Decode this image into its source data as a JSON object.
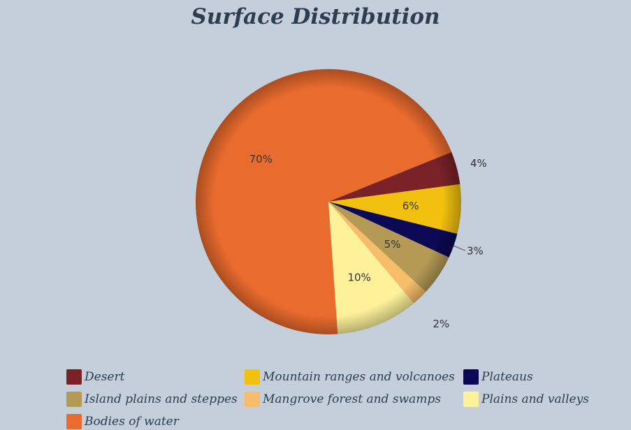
{
  "chart_data": {
    "type": "pie",
    "title": "Surface Distribution",
    "slices": [
      {
        "label": "Desert",
        "value": 4,
        "display": "4%",
        "color": "#7a2227"
      },
      {
        "label": "Mountain ranges and volcanoes",
        "value": 6,
        "display": "6%",
        "color": "#f2c110"
      },
      {
        "label": "Plateaus",
        "value": 3,
        "display": "3%",
        "color": "#0b0856"
      },
      {
        "label": "Island plains and steppes",
        "value": 5,
        "display": "5%",
        "color": "#b59a56"
      },
      {
        "label": "Mangrove forest and swamps",
        "value": 2,
        "display": "2%",
        "color": "#f8bd6a"
      },
      {
        "label": "Plains and valleys",
        "value": 10,
        "display": "10%",
        "color": "#fdf29a"
      },
      {
        "label": "Bodies of water",
        "value": 70,
        "display": "70%",
        "color": "#ea6b2e"
      }
    ],
    "legend_position": "bottom"
  }
}
